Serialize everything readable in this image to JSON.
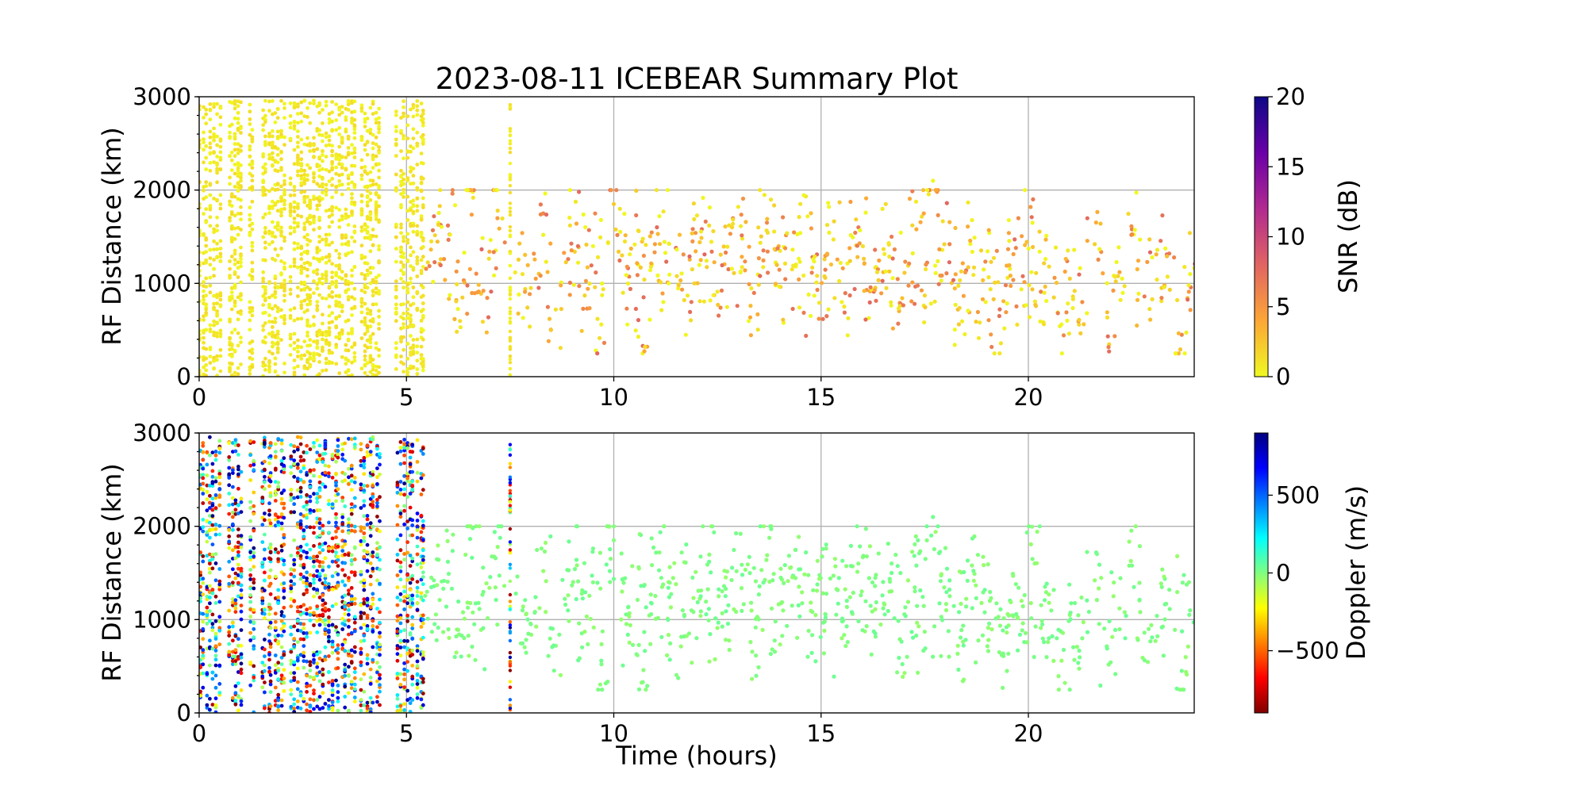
{
  "chart_data": [
    {
      "type": "scatter",
      "title": "2023-08-11 ICEBEAR Summary Plot",
      "xlabel": "",
      "ylabel": "RF Distance (km)",
      "xlim": [
        0,
        24
      ],
      "ylim": [
        0,
        3000
      ],
      "xticks": [
        "0",
        "5",
        "10",
        "15",
        "20"
      ],
      "yticks": [
        "0",
        "1000",
        "2000",
        "3000"
      ],
      "grid": true,
      "color_by": "snr",
      "colorbar": {
        "label": "SNR (dB)",
        "range": [
          0,
          20
        ],
        "ticks": [
          "0",
          "5",
          "10",
          "15",
          "20"
        ],
        "colormap": "plasma_r",
        "colors": [
          "#f0f921",
          "#fca636",
          "#e16462",
          "#b12a90",
          "#6a00a8",
          "#0d0887"
        ]
      }
    },
    {
      "type": "scatter",
      "title": "",
      "xlabel": "Time (hours)",
      "ylabel": "RF Distance (km)",
      "xlim": [
        0,
        24
      ],
      "ylim": [
        0,
        3000
      ],
      "xticks": [
        "0",
        "5",
        "10",
        "15",
        "20"
      ],
      "yticks": [
        "0",
        "1000",
        "2000",
        "3000"
      ],
      "grid": true,
      "color_by": "doppler",
      "colorbar": {
        "label": "Doppler (m/s)",
        "range": [
          -900,
          900
        ],
        "ticks": [
          "−500",
          "0",
          "500"
        ],
        "tick_values": [
          -500,
          0,
          500
        ],
        "colormap": "jet_r",
        "colors": [
          "#800000",
          "#ff0000",
          "#ff8000",
          "#ffff00",
          "#80ff80",
          "#00ffff",
          "#0080ff",
          "#0000ff",
          "#000080"
        ]
      }
    }
  ],
  "data_description": {
    "dense_bands_hours": [
      [
        0,
        0.55
      ],
      [
        0.7,
        1.05
      ],
      [
        1.2,
        1.35
      ],
      [
        1.5,
        2.1
      ],
      [
        2.2,
        3.8
      ],
      [
        3.9,
        4.4
      ],
      [
        4.75,
        5.3
      ],
      [
        5.35,
        5.45
      ]
    ],
    "isolated_band_hours": 7.5,
    "sparse_points": [
      [
        5.6,
        1450
      ],
      [
        5.8,
        1210
      ],
      [
        6.0,
        1620
      ],
      [
        6.2,
        820
      ],
      [
        6.4,
        1010
      ],
      [
        6.6,
        1980
      ],
      [
        6.8,
        890
      ],
      [
        7.0,
        1340
      ],
      [
        7.2,
        1780
      ],
      [
        7.8,
        1100
      ],
      [
        8.0,
        950
      ],
      [
        8.3,
        1520
      ],
      [
        8.6,
        720
      ],
      [
        8.9,
        1260
      ],
      [
        9.1,
        1640
      ],
      [
        9.3,
        870
      ],
      [
        9.5,
        1400
      ],
      [
        9.7,
        560
      ],
      [
        10.0,
        1850
      ],
      [
        10.2,
        1300
      ],
      [
        10.4,
        940
      ],
      [
        10.6,
        1560
      ],
      [
        10.7,
        330
      ],
      [
        10.9,
        1180
      ],
      [
        11.1,
        1720
      ],
      [
        11.3,
        1010
      ],
      [
        11.5,
        1380
      ],
      [
        11.7,
        820
      ],
      [
        11.9,
        1450
      ],
      [
        12.1,
        1250
      ],
      [
        12.3,
        1620
      ],
      [
        12.5,
        910
      ],
      [
        12.7,
        1330
      ],
      [
        12.9,
        1110
      ],
      [
        13.1,
        1480
      ],
      [
        13.3,
        760
      ],
      [
        13.5,
        1270
      ],
      [
        13.7,
        1690
      ],
      [
        13.9,
        980
      ],
      [
        14.1,
        1390
      ],
      [
        14.3,
        1150
      ],
      [
        14.5,
        1540
      ],
      [
        14.7,
        880
      ],
      [
        14.9,
        1310
      ],
      [
        15.1,
        1060
      ],
      [
        15.3,
        1470
      ],
      [
        15.5,
        800
      ],
      [
        15.7,
        1240
      ],
      [
        15.9,
        1600
      ],
      [
        16.1,
        930
      ],
      [
        16.3,
        1360
      ],
      [
        16.5,
        1120
      ],
      [
        16.7,
        1500
      ],
      [
        16.9,
        790
      ],
      [
        17.1,
        1190
      ],
      [
        17.3,
        1580
      ],
      [
        17.5,
        870
      ],
      [
        17.7,
        2100
      ],
      [
        17.9,
        1030
      ],
      [
        18.1,
        1420
      ],
      [
        18.3,
        720
      ],
      [
        18.5,
        1140
      ],
      [
        18.7,
        1490
      ],
      [
        18.9,
        830
      ],
      [
        19.1,
        1230
      ],
      [
        19.3,
        650
      ],
      [
        19.5,
        1060
      ],
      [
        19.7,
        1380
      ],
      [
        19.9,
        760
      ],
      [
        20.1,
        1650
      ],
      [
        20.3,
        910
      ],
      [
        20.5,
        1180
      ],
      [
        20.8,
        560
      ],
      [
        21.0,
        1050
      ],
      [
        21.3,
        800
      ],
      [
        21.6,
        1420
      ],
      [
        21.9,
        690
      ],
      [
        22.2,
        1120
      ],
      [
        22.5,
        1580
      ],
      [
        22.8,
        860
      ],
      [
        23.1,
        1040
      ],
      [
        23.4,
        1320
      ],
      [
        23.7,
        450
      ],
      [
        23.9,
        1100
      ]
    ]
  }
}
